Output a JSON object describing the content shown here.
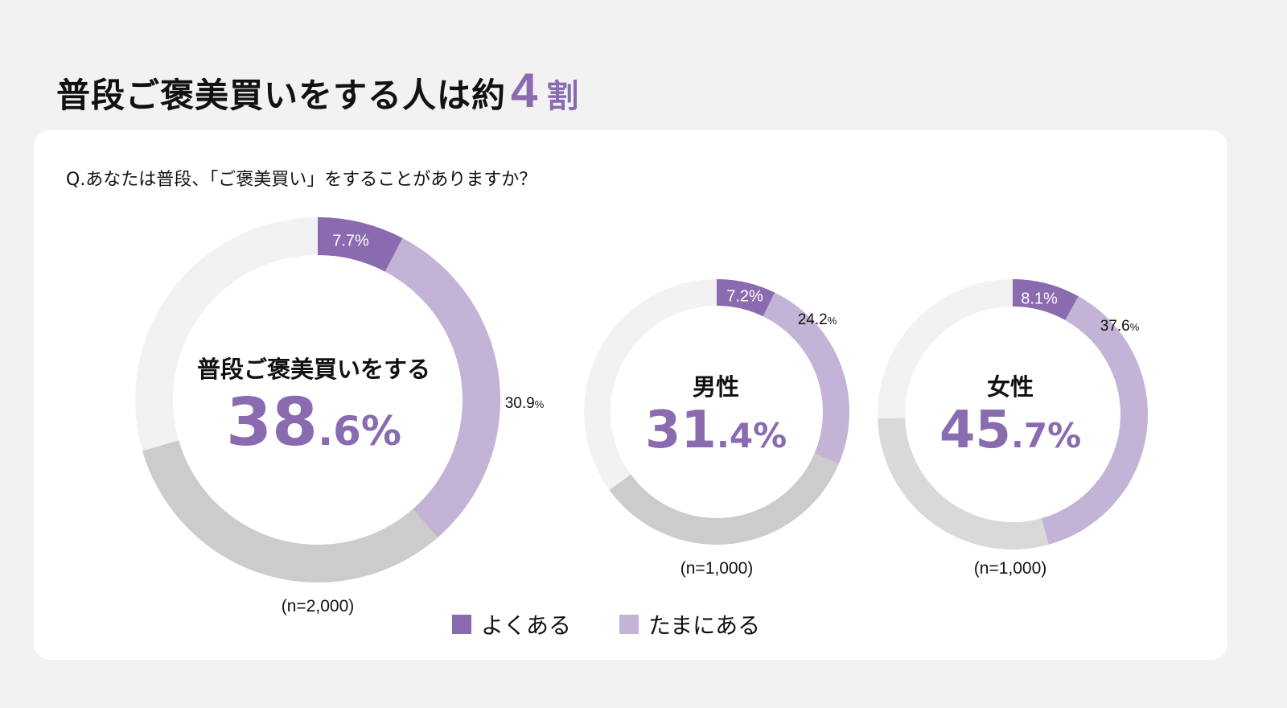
{
  "header": {
    "title": "普段ご褒美買いをする人は約",
    "title_number": "4",
    "title_unit": "割"
  },
  "question": "Q.あなたは普段、「ご褒美買い」をすることがありますか？",
  "colors": {
    "often": "#8a6bb0",
    "sometimes": "#c3b3d6",
    "gray_dark": "#cccccc",
    "gray_mid": "#d9d9d9",
    "gray_light": "#f2f2f2"
  },
  "legend": [
    {
      "label": "よくある",
      "color": "#8a6bb0"
    },
    {
      "label": "たまにある",
      "color": "#c3b3d6"
    }
  ],
  "chart_data": [
    {
      "type": "pie",
      "variant": "donut",
      "center_title": "普段ご褒美買いをする",
      "center_value_int": "38",
      "center_value_dec": ".6%",
      "sample": "(n=2,000)",
      "segments": [
        {
          "series": "よくある",
          "value": 7.7,
          "label": "7.7%",
          "color": "#8a6bb0"
        },
        {
          "series": "たまにある",
          "value": 30.9,
          "label": "30.9",
          "label_unit": "%",
          "color": "#c3b3d6"
        },
        {
          "value": 31.9,
          "color": "#cccccc"
        },
        {
          "value": 29.5,
          "color": "#f2f2f2"
        }
      ]
    },
    {
      "type": "pie",
      "variant": "donut",
      "center_title": "男性",
      "center_value_int": "31",
      "center_value_dec": ".4%",
      "sample": "(n=1,000)",
      "segments": [
        {
          "series": "よくある",
          "value": 7.2,
          "label": "7.2%",
          "color": "#8a6bb0"
        },
        {
          "series": "たまにある",
          "value": 24.2,
          "label": "24.2",
          "label_unit": "%",
          "color": "#c3b3d6"
        },
        {
          "value": 33.6,
          "color": "#cccccc"
        },
        {
          "value": 35.0,
          "color": "#f2f2f2"
        }
      ]
    },
    {
      "type": "pie",
      "variant": "donut",
      "center_title": "女性",
      "center_value_int": "45",
      "center_value_dec": ".7%",
      "sample": "(n=1,000)",
      "segments": [
        {
          "series": "よくある",
          "value": 8.1,
          "label": "8.1%",
          "color": "#8a6bb0"
        },
        {
          "series": "たまにある",
          "value": 37.6,
          "label": "37.6",
          "label_unit": "%",
          "color": "#c3b3d6"
        },
        {
          "value": 28.8,
          "color": "#d9d9d9"
        },
        {
          "value": 25.5,
          "color": "#f2f2f2"
        }
      ]
    }
  ]
}
